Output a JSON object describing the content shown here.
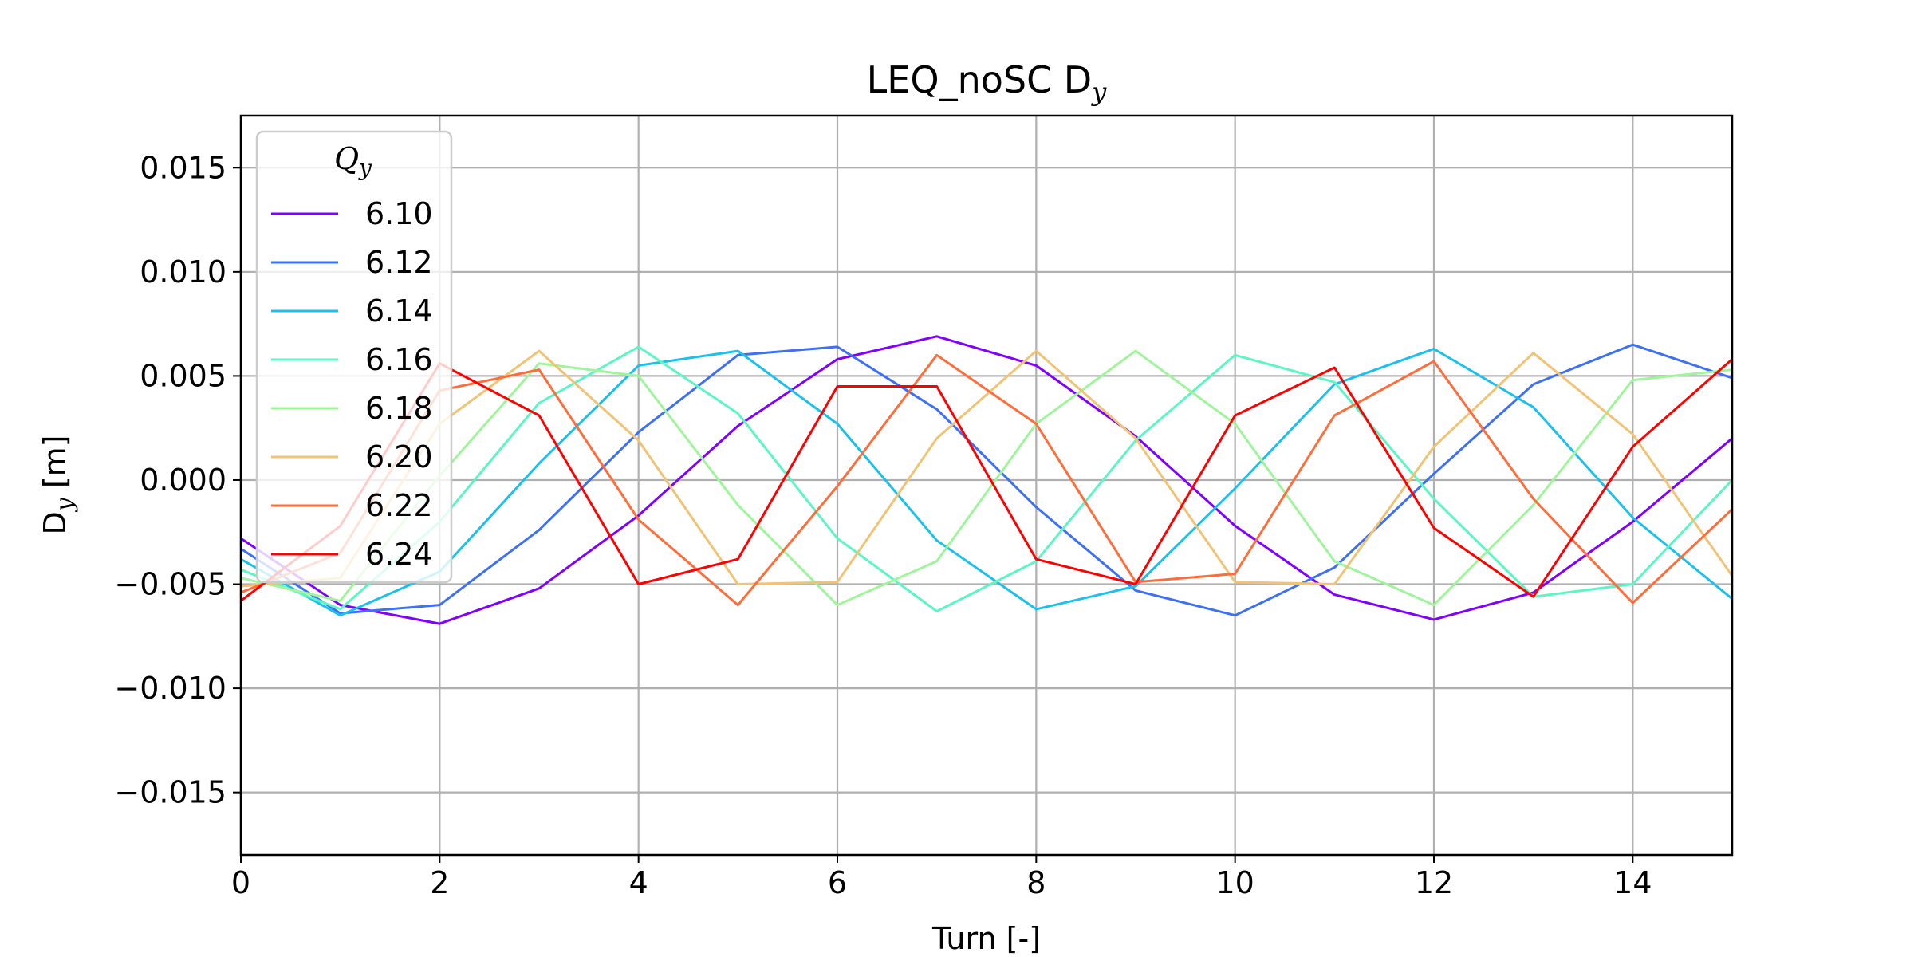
{
  "chart_data": {
    "type": "line",
    "title": "LEQ_noSC D",
    "title_sub": "y",
    "xlabel": "Turn [-]",
    "ylabel_main": "D",
    "ylabel_sub": "y",
    "ylabel_unit": " [m]",
    "xlim": [
      0,
      15
    ],
    "ylim": [
      -0.018,
      0.0175
    ],
    "x_ticks": [
      0,
      2,
      4,
      6,
      8,
      10,
      12,
      14
    ],
    "x_tick_labels": [
      "0",
      "2",
      "4",
      "6",
      "8",
      "10",
      "12",
      "14"
    ],
    "y_ticks": [
      -0.015,
      -0.01,
      -0.005,
      0.0,
      0.005,
      0.01,
      0.015
    ],
    "y_tick_labels": [
      "−0.015",
      "−0.010",
      "−0.005",
      "0.000",
      "0.005",
      "0.010",
      "0.015"
    ],
    "grid": true,
    "legend": {
      "title_main": "Q",
      "title_sub": "y",
      "placement": "upper-left"
    },
    "x": [
      0,
      1,
      2,
      3,
      4,
      5,
      6,
      7,
      8,
      9,
      10,
      11,
      12,
      13,
      14,
      15
    ],
    "series": [
      {
        "name": "6.10",
        "color": "#8000ff",
        "values": [
          -0.0028,
          -0.006,
          -0.0069,
          -0.0052,
          -0.0017,
          0.0026,
          0.0058,
          0.0069,
          0.0055,
          0.0021,
          -0.0022,
          -0.0055,
          -0.0067,
          -0.0054,
          -0.002,
          0.002
        ]
      },
      {
        "name": "6.12",
        "color": "#3e70f3",
        "values": [
          -0.0033,
          -0.0064,
          -0.006,
          -0.0024,
          0.0023,
          0.006,
          0.0064,
          0.0034,
          -0.0013,
          -0.0053,
          -0.0065,
          -0.0042,
          0.0003,
          0.0046,
          0.0065,
          0.0049
        ]
      },
      {
        "name": "6.14",
        "color": "#1bc0ec",
        "values": [
          -0.0038,
          -0.0065,
          -0.0044,
          0.0008,
          0.0055,
          0.0062,
          0.0027,
          -0.0029,
          -0.0062,
          -0.0051,
          -0.0004,
          0.0046,
          0.0063,
          0.0035,
          -0.0018,
          -0.0057
        ]
      },
      {
        "name": "6.16",
        "color": "#5cf6c4",
        "values": [
          -0.0043,
          -0.0062,
          -0.002,
          0.0037,
          0.0064,
          0.0032,
          -0.0028,
          -0.0063,
          -0.0039,
          0.0019,
          0.006,
          0.0047,
          -0.0009,
          -0.0056,
          -0.005,
          0.0
        ]
      },
      {
        "name": "6.18",
        "color": "#a0f49c",
        "values": [
          -0.0047,
          -0.0058,
          0.0002,
          0.0056,
          0.005,
          -0.0012,
          -0.006,
          -0.0039,
          0.0027,
          0.0062,
          0.0027,
          -0.0039,
          -0.006,
          -0.0012,
          0.0048,
          0.0053
        ]
      },
      {
        "name": "6.20",
        "color": "#f1c375",
        "values": [
          -0.0051,
          -0.0047,
          0.0027,
          0.0062,
          0.0019,
          -0.005,
          -0.0049,
          0.002,
          0.0062,
          0.002,
          -0.0049,
          -0.005,
          0.0016,
          0.0061,
          0.0022,
          -0.0046
        ]
      },
      {
        "name": "6.22",
        "color": "#ff6d3a",
        "values": [
          -0.0054,
          -0.0035,
          0.0043,
          0.0053,
          -0.0019,
          -0.006,
          -0.0003,
          0.006,
          0.0027,
          -0.0049,
          -0.0045,
          0.0031,
          0.0057,
          -0.0009,
          -0.0059,
          -0.0014
        ]
      },
      {
        "name": "6.24",
        "color": "#ff0000",
        "values": [
          -0.0058,
          -0.0022,
          0.0056,
          0.0031,
          -0.005,
          -0.0038,
          0.0045,
          0.0045,
          -0.0038,
          -0.005,
          0.0031,
          0.0054,
          -0.0023,
          -0.0056,
          0.0016,
          0.0058
        ]
      }
    ]
  }
}
